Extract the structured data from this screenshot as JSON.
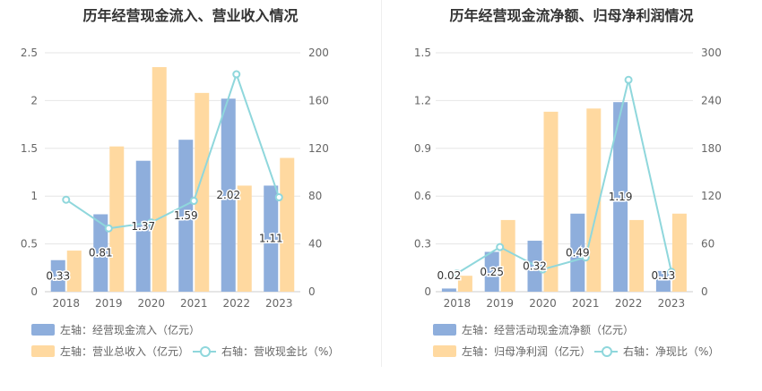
{
  "colors": {
    "bar_primary": "#8eaedc",
    "bar_secondary": "#ffd9a0",
    "line": "#8fd7dc",
    "grid": "#e6e6e6",
    "axis_text": "#666666",
    "title_text": "#333333",
    "label_text": "#333333"
  },
  "chart_data": [
    {
      "type": "bar",
      "title": "历年经营现金流入、营业收入情况",
      "categories": [
        "2018",
        "2019",
        "2020",
        "2021",
        "2022",
        "2023"
      ],
      "left_axis": {
        "range": [
          0,
          2.5
        ],
        "ticks": [
          "0",
          "0.5",
          "1",
          "1.5",
          "2",
          "2.5"
        ]
      },
      "right_axis": {
        "range": [
          0,
          200
        ],
        "ticks": [
          "0",
          "40",
          "80",
          "120",
          "160",
          "200"
        ]
      },
      "series": [
        {
          "name": "左轴：经营现金流入（亿元）",
          "kind": "bar",
          "axis": "left",
          "values": [
            0.33,
            0.81,
            1.37,
            1.59,
            2.02,
            1.11
          ],
          "labels": [
            "0.33",
            "0.81",
            "1.37",
            "1.59",
            "2.02",
            "1.11"
          ]
        },
        {
          "name": "左轴：营业总收入（亿元）",
          "kind": "bar",
          "axis": "left",
          "values": [
            0.43,
            1.52,
            2.35,
            2.08,
            1.11,
            1.4
          ]
        },
        {
          "name": "右轴：营收现金比（%）",
          "kind": "line",
          "axis": "right",
          "values": [
            77,
            53,
            58,
            76,
            182,
            79
          ]
        }
      ],
      "legend_placement": "bottom",
      "grid": true
    },
    {
      "type": "bar",
      "title": "历年经营现金流净额、归母净利润情况",
      "categories": [
        "2018",
        "2019",
        "2020",
        "2021",
        "2022",
        "2023"
      ],
      "left_axis": {
        "range": [
          0,
          1.5
        ],
        "ticks": [
          "0",
          "0.3",
          "0.6",
          "0.9",
          "1.2",
          "1.5"
        ]
      },
      "right_axis": {
        "range": [
          0,
          300
        ],
        "ticks": [
          "0",
          "60",
          "120",
          "180",
          "240",
          "300"
        ]
      },
      "series": [
        {
          "name": "左轴：经营活动现金流净额（亿元）",
          "kind": "bar",
          "axis": "left",
          "values": [
            0.02,
            0.25,
            0.32,
            0.49,
            1.19,
            0.13
          ],
          "labels": [
            "0.02",
            "0.25",
            "0.32",
            "0.49",
            "1.19",
            "0.13"
          ]
        },
        {
          "name": "左轴：归母净利润（亿元）",
          "kind": "bar",
          "axis": "left",
          "values": [
            0.1,
            0.45,
            1.13,
            1.15,
            0.45,
            0.49
          ]
        },
        {
          "name": "右轴：净现比（%）",
          "kind": "line",
          "axis": "right",
          "values": [
            23,
            56,
            28,
            43,
            266,
            25
          ]
        }
      ],
      "legend_placement": "bottom",
      "grid": true
    }
  ]
}
